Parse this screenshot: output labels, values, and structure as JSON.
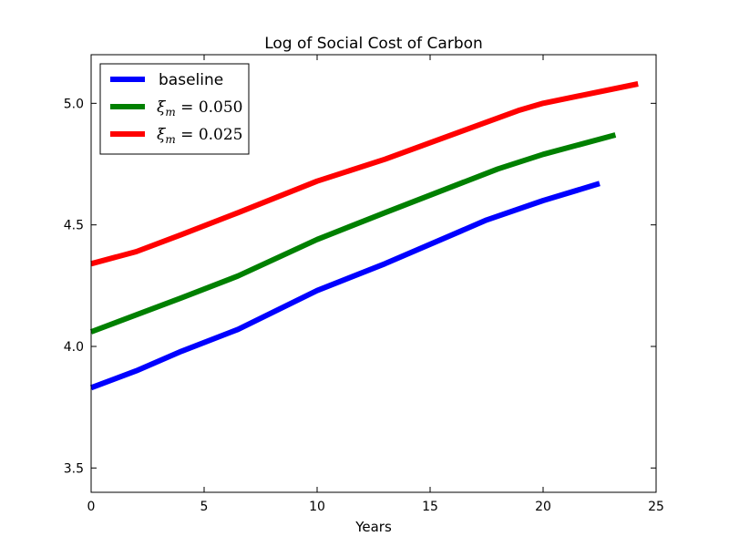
{
  "chart_data": {
    "type": "line",
    "title": "Log of Social Cost of Carbon",
    "xlabel": "Years",
    "ylabel": "",
    "xlim": [
      0,
      25
    ],
    "ylim": [
      3.4,
      5.2
    ],
    "xticks": [
      0,
      5,
      10,
      15,
      20,
      25
    ],
    "yticks": [
      3.5,
      4.0,
      4.5,
      5.0
    ],
    "xtick_labels": [
      "0",
      "5",
      "10",
      "15",
      "20",
      "25"
    ],
    "ytick_labels": [
      "3.5",
      "4.0",
      "4.5",
      "5.0"
    ],
    "grid": false,
    "legend": "top-left",
    "series": [
      {
        "name": "baseline",
        "color": "#0000ff",
        "x": [
          0,
          2,
          4,
          6.5,
          10,
          13,
          17.5,
          20,
          22.5
        ],
        "y": [
          3.83,
          3.9,
          3.98,
          4.07,
          4.23,
          4.34,
          4.52,
          4.6,
          4.67
        ]
      },
      {
        "name": "ξm = 0.050",
        "legend": {
          "sym": "ξ",
          "sub": "m",
          "rest": " = 0.050"
        },
        "color": "#008000",
        "x": [
          0,
          2,
          4,
          6.5,
          10,
          13,
          18,
          20,
          23.2
        ],
        "y": [
          4.06,
          4.13,
          4.2,
          4.29,
          4.44,
          4.55,
          4.73,
          4.79,
          4.87
        ]
      },
      {
        "name": "ξm = 0.025",
        "legend": {
          "sym": "ξ",
          "sub": "m",
          "rest": " = 0.025"
        },
        "color": "#ff0000",
        "x": [
          0,
          2,
          4,
          6.5,
          10,
          13,
          18.9,
          20,
          24.2
        ],
        "y": [
          4.34,
          4.39,
          4.46,
          4.55,
          4.68,
          4.77,
          4.97,
          5.0,
          5.08
        ]
      }
    ]
  }
}
